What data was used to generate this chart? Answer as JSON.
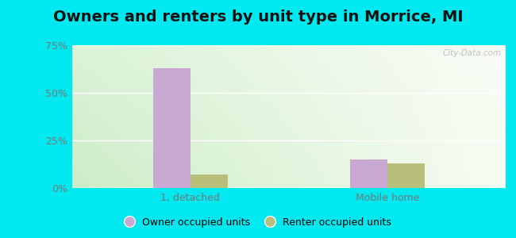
{
  "title": "Owners and renters by unit type in Morrice, MI",
  "categories": [
    "1, detached",
    "Mobile home"
  ],
  "owner_values": [
    63.0,
    15.0
  ],
  "renter_values": [
    7.0,
    13.0
  ],
  "owner_color": "#c9a8d4",
  "renter_color": "#b8bf7a",
  "ylim": [
    0,
    75
  ],
  "yticks": [
    0,
    25,
    50,
    75
  ],
  "ytick_labels": [
    "0%",
    "25%",
    "50%",
    "75%"
  ],
  "legend_owner": "Owner occupied units",
  "legend_renter": "Renter occupied units",
  "bg_outer": "#00e8f0",
  "watermark": "City-Data.com",
  "bar_width": 0.38,
  "group_positions": [
    1.2,
    3.2
  ],
  "xlim": [
    0,
    4.4
  ],
  "title_fontsize": 14,
  "tick_fontsize": 9,
  "legend_fontsize": 9
}
